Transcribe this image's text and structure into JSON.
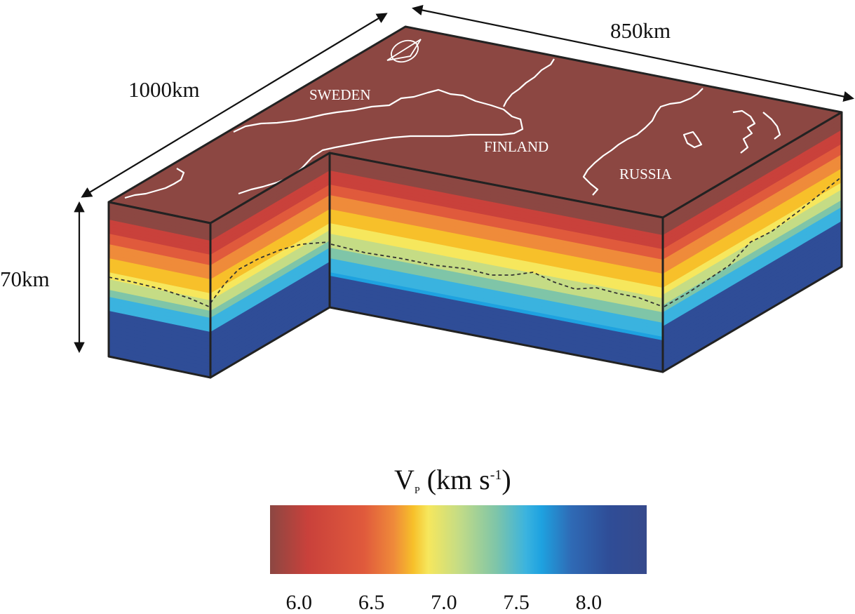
{
  "dimensions": {
    "length_a": "1000km",
    "length_b": "850km",
    "depth": "70km"
  },
  "countries": [
    "SWEDEN",
    "FINLAND",
    "RUSSIA"
  ],
  "colorbar": {
    "title_main": "V",
    "title_sub": "P",
    "title_unit": "(km s",
    "title_sup": "-1",
    "title_close": ")",
    "ticks": [
      "6.0",
      "6.5",
      "7.0",
      "7.5",
      "8.0"
    ],
    "range": [
      5.8,
      8.4
    ]
  },
  "colors": {
    "surface": "#8c4742",
    "border_lines": "#ffffff",
    "outline": "#222222",
    "velocity_scale": [
      "#8c4742",
      "#c9413b",
      "#e05a3c",
      "#ef8b3a",
      "#f7c02a",
      "#f6e75d",
      "#c5dc85",
      "#7fc5a8",
      "#3ab3df",
      "#1ea2e0",
      "#2f6ab5",
      "#2f4d97",
      "#364a8c"
    ]
  }
}
